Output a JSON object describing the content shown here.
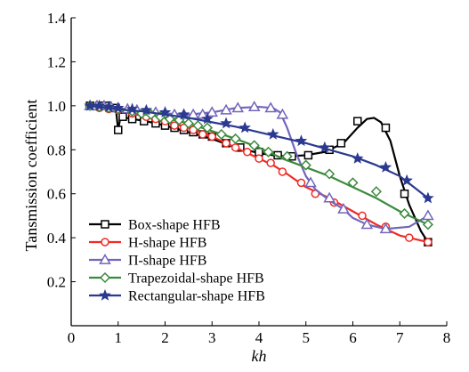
{
  "chart_data": {
    "type": "line",
    "title": "",
    "xlabel": "kh",
    "ylabel": "Tansmission coefficient",
    "xlim": [
      0,
      8
    ],
    "ylim": [
      0,
      1.4
    ],
    "xticks": [
      "0",
      "1",
      "2",
      "3",
      "4",
      "5",
      "6",
      "7",
      "8"
    ],
    "yticks": [
      "0.2",
      "0.4",
      "0.6",
      "0.8",
      "1.0",
      "1.2",
      "1.4"
    ],
    "grid": false,
    "legend_position": "bottom-left",
    "series": [
      {
        "name": "Box-shape HFB",
        "color": "#000000",
        "marker": "square",
        "line": [
          [
            0.4,
            1.0
          ],
          [
            0.6,
            1.0
          ],
          [
            0.8,
            1.0
          ],
          [
            0.95,
            0.99
          ],
          [
            1.0,
            0.89
          ],
          [
            1.05,
            0.95
          ],
          [
            1.3,
            0.94
          ],
          [
            1.6,
            0.93
          ],
          [
            2.0,
            0.91
          ],
          [
            2.5,
            0.88
          ],
          [
            3.0,
            0.85
          ],
          [
            3.5,
            0.81
          ],
          [
            4.0,
            0.785
          ],
          [
            4.3,
            0.775
          ],
          [
            4.6,
            0.77
          ],
          [
            5.0,
            0.775
          ],
          [
            5.4,
            0.79
          ],
          [
            5.8,
            0.83
          ],
          [
            6.1,
            0.9
          ],
          [
            6.3,
            0.94
          ],
          [
            6.45,
            0.945
          ],
          [
            6.6,
            0.925
          ],
          [
            6.8,
            0.84
          ],
          [
            7.0,
            0.68
          ],
          [
            7.2,
            0.55
          ],
          [
            7.45,
            0.43
          ],
          [
            7.6,
            0.38
          ]
        ],
        "markers": [
          [
            0.4,
            1.0
          ],
          [
            0.6,
            1.0
          ],
          [
            0.75,
            1.0
          ],
          [
            0.95,
            0.99
          ],
          [
            1.0,
            0.89
          ],
          [
            1.1,
            0.95
          ],
          [
            1.3,
            0.94
          ],
          [
            1.55,
            0.93
          ],
          [
            1.8,
            0.92
          ],
          [
            2.0,
            0.91
          ],
          [
            2.2,
            0.9
          ],
          [
            2.4,
            0.89
          ],
          [
            2.6,
            0.88
          ],
          [
            2.8,
            0.87
          ],
          [
            3.0,
            0.86
          ],
          [
            3.3,
            0.83
          ],
          [
            3.6,
            0.81
          ],
          [
            4.0,
            0.79
          ],
          [
            4.4,
            0.775
          ],
          [
            4.7,
            0.77
          ],
          [
            5.05,
            0.775
          ],
          [
            5.5,
            0.8
          ],
          [
            5.75,
            0.83
          ],
          [
            6.1,
            0.93
          ],
          [
            6.7,
            0.9
          ],
          [
            7.1,
            0.6
          ],
          [
            7.6,
            0.38
          ]
        ]
      },
      {
        "name": "H-shape HFB",
        "color": "#ee2b24",
        "marker": "circle",
        "line": [
          [
            0.4,
            1.0
          ],
          [
            0.8,
            0.985
          ],
          [
            1.5,
            0.955
          ],
          [
            2.0,
            0.93
          ],
          [
            2.5,
            0.9
          ],
          [
            3.0,
            0.86
          ],
          [
            3.5,
            0.81
          ],
          [
            4.0,
            0.76
          ],
          [
            4.3,
            0.73
          ],
          [
            4.6,
            0.69
          ],
          [
            5.0,
            0.63
          ],
          [
            5.5,
            0.58
          ],
          [
            6.0,
            0.52
          ],
          [
            6.5,
            0.46
          ],
          [
            7.0,
            0.41
          ],
          [
            7.6,
            0.38
          ]
        ],
        "markers": [
          [
            0.4,
            1.0
          ],
          [
            0.6,
            0.99
          ],
          [
            0.8,
            0.985
          ],
          [
            1.0,
            0.98
          ],
          [
            1.3,
            0.965
          ],
          [
            1.6,
            0.95
          ],
          [
            1.8,
            0.94
          ],
          [
            2.0,
            0.93
          ],
          [
            2.2,
            0.91
          ],
          [
            2.4,
            0.9
          ],
          [
            2.6,
            0.89
          ],
          [
            2.8,
            0.87
          ],
          [
            3.0,
            0.86
          ],
          [
            3.3,
            0.83
          ],
          [
            3.5,
            0.81
          ],
          [
            3.75,
            0.79
          ],
          [
            4.0,
            0.76
          ],
          [
            4.25,
            0.74
          ],
          [
            4.5,
            0.7
          ],
          [
            4.9,
            0.65
          ],
          [
            5.2,
            0.6
          ],
          [
            5.6,
            0.56
          ],
          [
            6.2,
            0.5
          ],
          [
            6.7,
            0.45
          ],
          [
            7.2,
            0.4
          ],
          [
            7.6,
            0.38
          ]
        ]
      },
      {
        "name": "Π-shape HFB",
        "color": "#7266ba",
        "marker": "triangle",
        "line": [
          [
            0.4,
            1.0
          ],
          [
            1.0,
            0.99
          ],
          [
            1.5,
            0.975
          ],
          [
            2.0,
            0.965
          ],
          [
            2.5,
            0.96
          ],
          [
            3.0,
            0.97
          ],
          [
            3.5,
            0.99
          ],
          [
            4.0,
            0.995
          ],
          [
            4.3,
            0.99
          ],
          [
            4.45,
            0.97
          ],
          [
            4.6,
            0.9
          ],
          [
            4.8,
            0.78
          ],
          [
            5.0,
            0.68
          ],
          [
            5.2,
            0.62
          ],
          [
            5.5,
            0.57
          ],
          [
            5.8,
            0.53
          ],
          [
            6.0,
            0.49
          ],
          [
            6.3,
            0.46
          ],
          [
            6.7,
            0.44
          ],
          [
            7.2,
            0.45
          ],
          [
            7.6,
            0.5
          ]
        ],
        "markers": [
          [
            0.4,
            1.0
          ],
          [
            0.55,
            1.0
          ],
          [
            0.7,
            1.0
          ],
          [
            0.85,
            0.995
          ],
          [
            1.0,
            0.99
          ],
          [
            1.2,
            0.985
          ],
          [
            1.4,
            0.98
          ],
          [
            1.6,
            0.975
          ],
          [
            1.8,
            0.97
          ],
          [
            2.0,
            0.965
          ],
          [
            2.2,
            0.96
          ],
          [
            2.4,
            0.96
          ],
          [
            2.6,
            0.96
          ],
          [
            2.8,
            0.96
          ],
          [
            3.0,
            0.97
          ],
          [
            3.3,
            0.98
          ],
          [
            3.55,
            0.99
          ],
          [
            3.9,
            0.995
          ],
          [
            4.25,
            0.99
          ],
          [
            4.5,
            0.96
          ],
          [
            5.1,
            0.65
          ],
          [
            5.5,
            0.58
          ],
          [
            5.8,
            0.53
          ],
          [
            6.3,
            0.46
          ],
          [
            6.7,
            0.44
          ],
          [
            7.6,
            0.5
          ]
        ]
      },
      {
        "name": "Trapezoidal-shape HFB",
        "color": "#3c8a3c",
        "marker": "diamond",
        "line": [
          [
            0.4,
            1.0
          ],
          [
            1.0,
            0.985
          ],
          [
            1.5,
            0.97
          ],
          [
            2.0,
            0.945
          ],
          [
            2.5,
            0.92
          ],
          [
            3.0,
            0.885
          ],
          [
            3.5,
            0.85
          ],
          [
            4.0,
            0.81
          ],
          [
            4.5,
            0.76
          ],
          [
            5.0,
            0.72
          ],
          [
            5.5,
            0.68
          ],
          [
            6.0,
            0.63
          ],
          [
            6.5,
            0.58
          ],
          [
            7.0,
            0.52
          ],
          [
            7.6,
            0.46
          ]
        ],
        "markers": [
          [
            0.4,
            1.0
          ],
          [
            0.6,
            0.995
          ],
          [
            0.8,
            0.99
          ],
          [
            1.0,
            0.985
          ],
          [
            1.3,
            0.975
          ],
          [
            1.5,
            0.965
          ],
          [
            1.7,
            0.96
          ],
          [
            1.9,
            0.95
          ],
          [
            2.1,
            0.94
          ],
          [
            2.3,
            0.935
          ],
          [
            2.5,
            0.92
          ],
          [
            2.7,
            0.91
          ],
          [
            2.9,
            0.9
          ],
          [
            3.2,
            0.87
          ],
          [
            3.5,
            0.85
          ],
          [
            3.9,
            0.82
          ],
          [
            4.2,
            0.79
          ],
          [
            4.6,
            0.77
          ],
          [
            5.0,
            0.73
          ],
          [
            5.5,
            0.69
          ],
          [
            6.0,
            0.65
          ],
          [
            6.5,
            0.61
          ],
          [
            7.1,
            0.51
          ],
          [
            7.6,
            0.46
          ]
        ]
      },
      {
        "name": "Rectangular-shape HFB",
        "color": "#2b3990",
        "marker": "star",
        "line": [
          [
            0.4,
            1.0
          ],
          [
            1.0,
            0.985
          ],
          [
            1.5,
            0.975
          ],
          [
            2.0,
            0.96
          ],
          [
            2.5,
            0.945
          ],
          [
            3.0,
            0.925
          ],
          [
            3.5,
            0.905
          ],
          [
            4.0,
            0.88
          ],
          [
            4.5,
            0.855
          ],
          [
            5.0,
            0.83
          ],
          [
            5.5,
            0.8
          ],
          [
            6.0,
            0.77
          ],
          [
            6.5,
            0.73
          ],
          [
            7.0,
            0.68
          ],
          [
            7.3,
            0.63
          ],
          [
            7.6,
            0.58
          ]
        ],
        "markers": [
          [
            0.4,
            1.0
          ],
          [
            0.6,
            1.0
          ],
          [
            0.8,
            0.995
          ],
          [
            1.0,
            0.99
          ],
          [
            1.3,
            0.985
          ],
          [
            1.6,
            0.98
          ],
          [
            2.0,
            0.97
          ],
          [
            2.4,
            0.96
          ],
          [
            2.9,
            0.94
          ],
          [
            3.3,
            0.92
          ],
          [
            3.7,
            0.9
          ],
          [
            4.3,
            0.87
          ],
          [
            4.9,
            0.84
          ],
          [
            5.4,
            0.81
          ],
          [
            6.1,
            0.76
          ],
          [
            6.7,
            0.72
          ],
          [
            7.15,
            0.66
          ],
          [
            7.6,
            0.58
          ]
        ]
      }
    ]
  }
}
